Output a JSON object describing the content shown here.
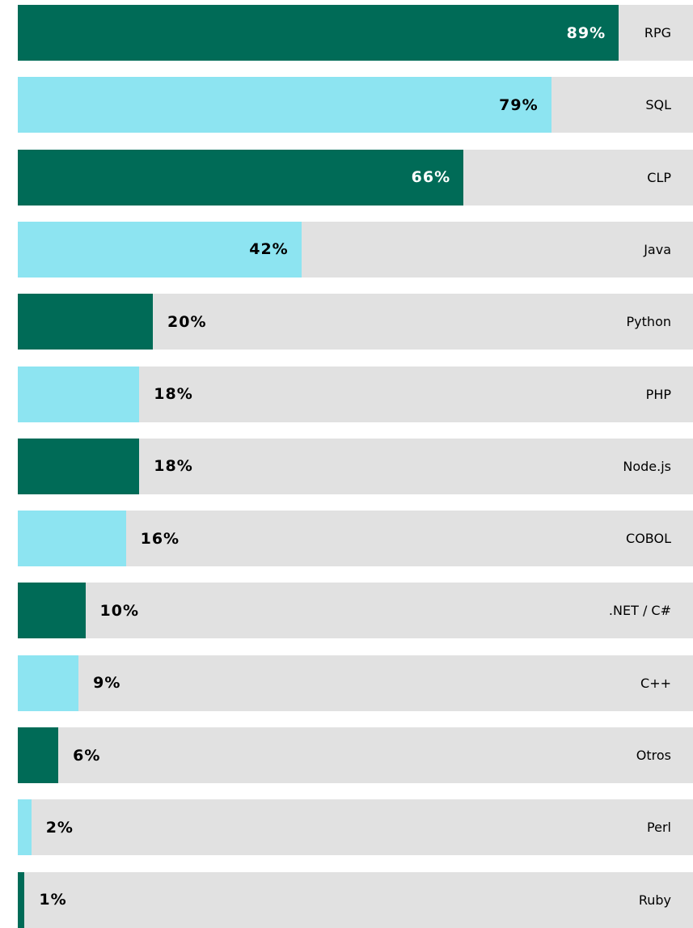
{
  "chart_data": {
    "type": "bar",
    "orientation": "horizontal",
    "title": "",
    "xlabel": "",
    "ylabel": "",
    "xlim": [
      0,
      100
    ],
    "grid": false,
    "legend": "none",
    "value_suffix": "%",
    "colors": [
      "#006b57",
      "#8de4f1"
    ],
    "track_color": "#e1e1e1",
    "categories": [
      "RPG",
      "SQL",
      "CLP",
      "Java",
      "Python",
      "PHP",
      "Node.js",
      "COBOL",
      ".NET / C#",
      "C++",
      "Otros",
      "Perl",
      "Ruby"
    ],
    "values": [
      89,
      79,
      66,
      42,
      20,
      18,
      18,
      16,
      10,
      9,
      6,
      2,
      1
    ],
    "value_labels": [
      "89%",
      "79%",
      "66%",
      "42%",
      "20%",
      "18%",
      "18%",
      "16%",
      "10%",
      "9%",
      "6%",
      "2%",
      "1%"
    ]
  }
}
